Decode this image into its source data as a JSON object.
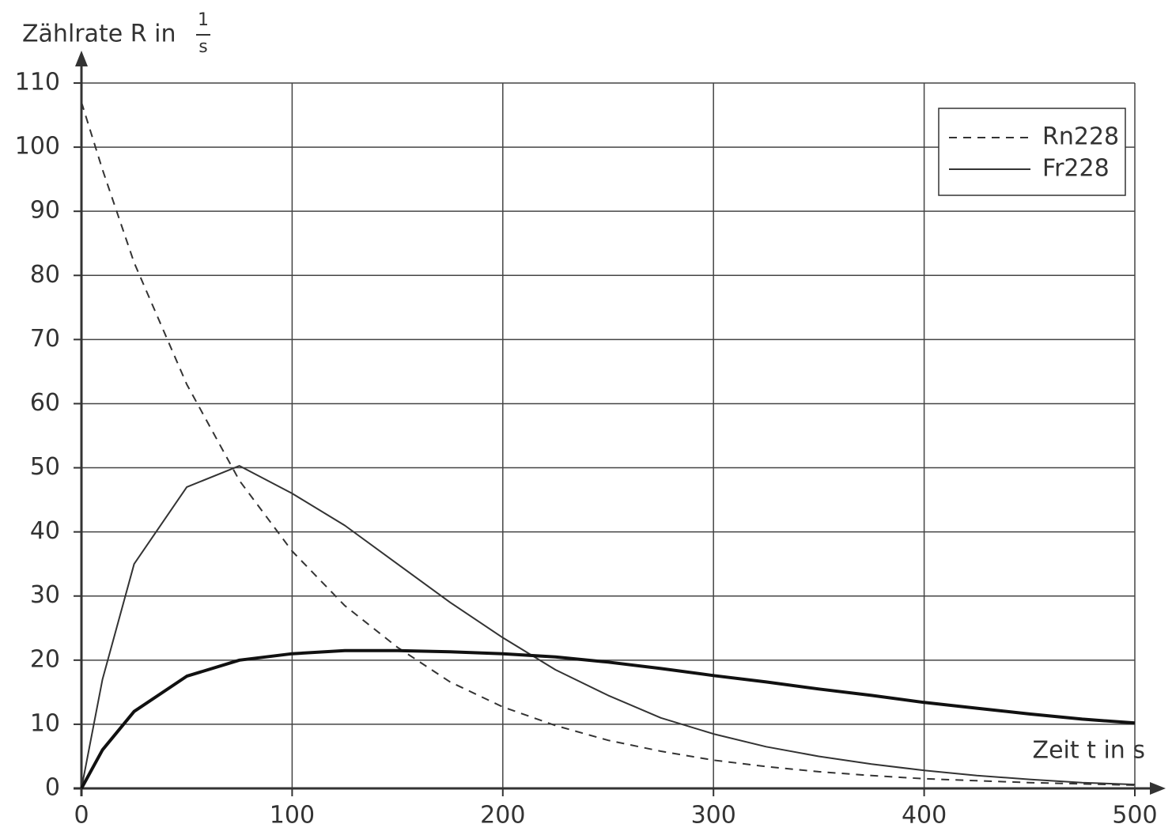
{
  "chart_data": {
    "type": "line",
    "y_label": {
      "text": "Zählrate R in",
      "unit_numerator": "1",
      "unit_denominator": "s"
    },
    "x_label": "Zeit t in s",
    "x": [
      0,
      10,
      25,
      50,
      75,
      100,
      125,
      150,
      175,
      200,
      225,
      250,
      275,
      300,
      325,
      350,
      375,
      400,
      425,
      450,
      475,
      500
    ],
    "series": [
      {
        "name": "Rn228",
        "color": "#333333",
        "dash": true,
        "width": 2,
        "values": [
          107,
          96.5,
          82,
          63,
          48,
          37,
          28.5,
          22,
          16.6,
          12.7,
          9.8,
          7.5,
          5.8,
          4.4,
          3.4,
          2.6,
          2,
          1.5,
          1.2,
          0.9,
          0.7,
          0.5
        ]
      },
      {
        "name": "Fr228",
        "color": "#333333",
        "dash": false,
        "width": 2,
        "values": [
          0,
          17,
          35,
          47,
          50.3,
          46,
          41,
          35,
          29,
          23.5,
          18.5,
          14.5,
          11,
          8.5,
          6.5,
          5,
          3.8,
          2.8,
          2,
          1.4,
          0.9,
          0.6
        ]
      },
      {
        "name": null,
        "color": "#111111",
        "dash": false,
        "width": 4,
        "values": [
          0,
          6,
          12,
          17.5,
          20,
          21,
          21.5,
          21.5,
          21.3,
          21,
          20.5,
          19.7,
          18.7,
          17.6,
          16.6,
          15.5,
          14.5,
          13.4,
          12.5,
          11.6,
          10.8,
          10.2
        ]
      }
    ],
    "xlim": [
      0,
      500
    ],
    "xticks": [
      0,
      100,
      200,
      300,
      400,
      500
    ],
    "ylim": [
      0,
      110
    ],
    "yticks": [
      0,
      10,
      20,
      30,
      40,
      50,
      60,
      70,
      80,
      90,
      100,
      110
    ],
    "grid": true,
    "legend": "upper right"
  }
}
